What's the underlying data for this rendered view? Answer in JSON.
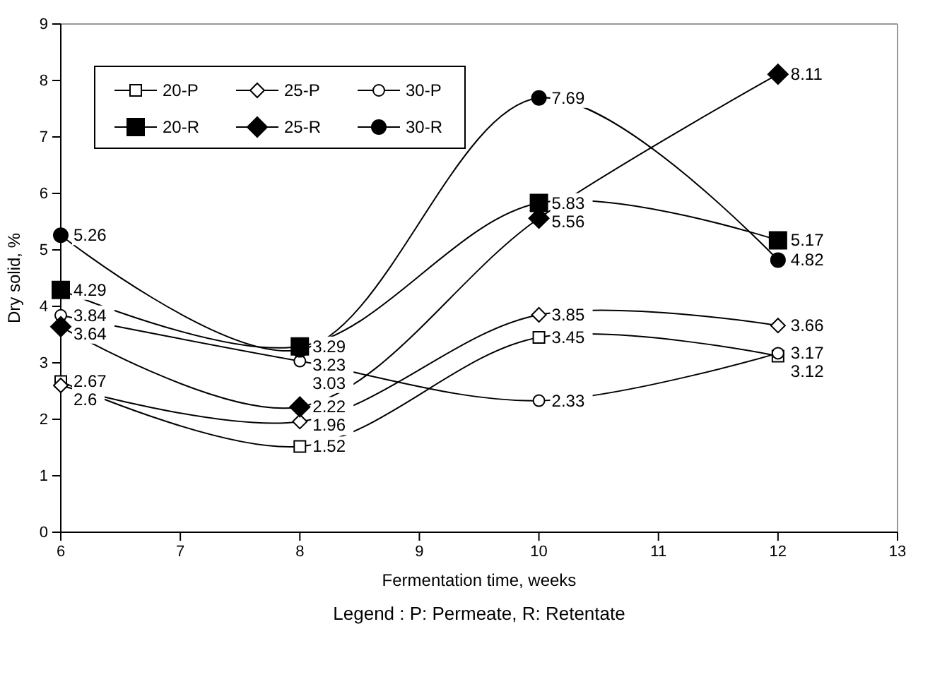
{
  "chart_data": {
    "type": "line",
    "xlabel": "Fermentation time, weeks",
    "ylabel": "Dry solid, %",
    "x": [
      6,
      8,
      10,
      12
    ],
    "xlim": [
      6,
      13
    ],
    "xticks": [
      6,
      7,
      8,
      9,
      10,
      11,
      12,
      13
    ],
    "ylim": [
      0,
      9
    ],
    "yticks": [
      0,
      1,
      2,
      3,
      4,
      5,
      6,
      7,
      8,
      9
    ],
    "grid": false,
    "legend": "top left",
    "data_labels": true,
    "line_style": "solid",
    "annotations": [
      "Legend : P: Permeate, R: Retentate"
    ],
    "series": [
      {
        "name": "20-P",
        "color": "#000000",
        "marker": "square",
        "colors": [
          "#ffffff",
          "#ffffff",
          "#ffffff",
          "#ffffff"
        ],
        "values": [
          2.67,
          1.52,
          3.45,
          3.12
        ]
      },
      {
        "name": "25-P",
        "color": "#000000",
        "marker": "diamond",
        "colors": [
          "#ffffff",
          "#ffffff",
          "#ffffff",
          "#ffffff"
        ],
        "values": [
          2.6,
          1.96,
          3.85,
          3.66
        ]
      },
      {
        "name": "30-P",
        "color": "#000000",
        "marker": "circle",
        "colors": [
          "#ffffff",
          "#ffffff",
          "#ffffff",
          "#ffffff"
        ],
        "values": [
          3.84,
          3.03,
          2.33,
          3.17
        ]
      },
      {
        "name": "20-R",
        "color": "#000000",
        "marker": "square",
        "values": [
          4.29,
          3.29,
          5.83,
          5.17
        ]
      },
      {
        "name": "25-R",
        "color": "#000000",
        "marker": "diamond",
        "values": [
          3.64,
          2.22,
          5.56,
          8.11
        ]
      },
      {
        "name": "30-R",
        "color": "#000000",
        "marker": "circle",
        "values": [
          5.26,
          3.23,
          7.69,
          4.82
        ]
      }
    ]
  }
}
